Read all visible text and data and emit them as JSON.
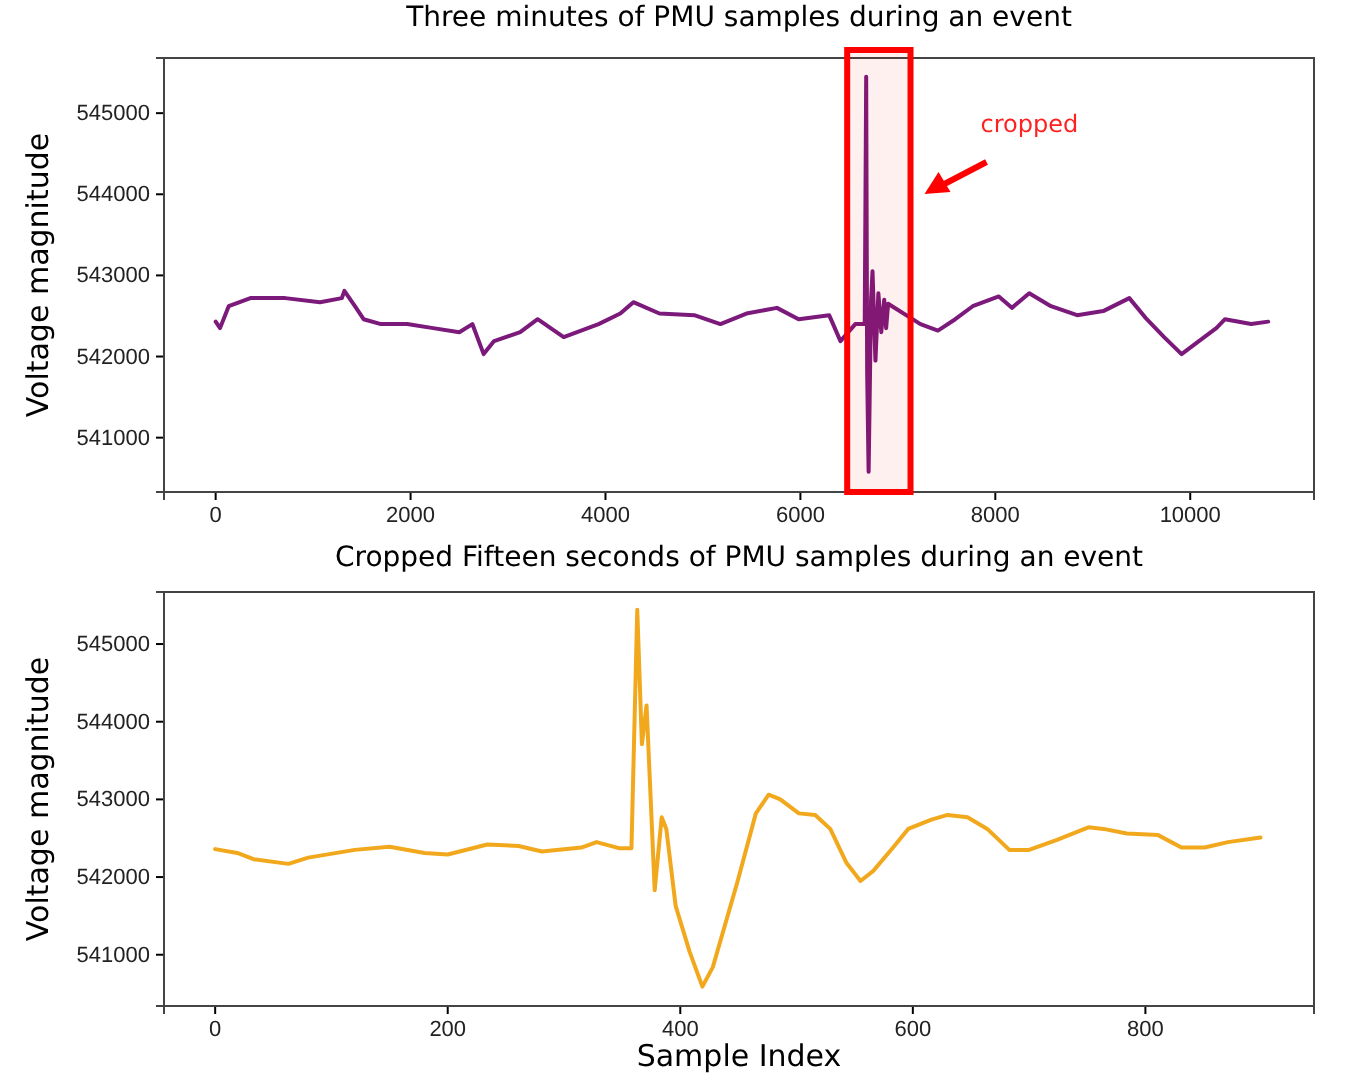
{
  "chart_data": [
    {
      "type": "line",
      "title": "Three minutes of PMU samples during an event",
      "ylabel": "Voltage magnitude",
      "annotations": [
        "cropped"
      ],
      "bands": [
        {
          "axis": "x",
          "from": 6480,
          "to": 7130,
          "color": "#ff0000"
        }
      ],
      "xlim": [
        -530,
        11270
      ],
      "ylim": [
        540330,
        545680
      ],
      "xticks": [
        0,
        2000,
        4000,
        6000,
        8000,
        10000
      ],
      "yticks": [
        541000,
        542000,
        543000,
        544000,
        545000
      ],
      "series": [
        {
          "color": "#7b1a7b",
          "x": [
            0,
            45,
            134,
            357,
            714,
            1071,
            1295,
            1321,
            1429,
            1518,
            1696,
            1964,
            2232,
            2500,
            2634,
            2750,
            2857,
            3125,
            3304,
            3571,
            3929,
            4152,
            4286,
            4554,
            4911,
            5179,
            5446,
            5759,
            5982,
            6295,
            6411,
            6563,
            6660,
            6675,
            6685,
            6700,
            6725,
            6740,
            6770,
            6800,
            6830,
            6860,
            6880,
            6900,
            7232,
            7411,
            7589,
            7768,
            8036,
            8170,
            8348,
            8571,
            8839,
            9107,
            9375,
            9554,
            9732,
            9911,
            10089,
            10268,
            10357,
            10625,
            10800
          ],
          "values": [
            542430,
            542350,
            542620,
            542720,
            542720,
            542670,
            542720,
            542810,
            542620,
            542460,
            542400,
            542400,
            542350,
            542300,
            542400,
            542030,
            542190,
            542300,
            542460,
            542240,
            542400,
            542530,
            542670,
            542530,
            542510,
            542400,
            542530,
            542600,
            542460,
            542510,
            542190,
            542400,
            542400,
            545450,
            541800,
            540580,
            542700,
            543050,
            541950,
            542780,
            542300,
            542700,
            542350,
            542650,
            542400,
            542320,
            542460,
            542620,
            542740,
            542600,
            542780,
            542620,
            542510,
            542560,
            542720,
            542460,
            542240,
            542030,
            542190,
            542350,
            542460,
            542400,
            542430
          ]
        }
      ]
    },
    {
      "type": "line",
      "title": "Cropped Fifteen seconds of PMU samples during an event",
      "xlabel": "Sample Index",
      "ylabel": "Voltage magnitude",
      "xlim": [
        -44,
        945
      ],
      "ylim": [
        540340,
        545670
      ],
      "xticks": [
        0,
        200,
        400,
        600,
        800
      ],
      "yticks": [
        541000,
        542000,
        543000,
        544000,
        545000
      ],
      "series": [
        {
          "color": "#f2a81d",
          "x": [
            0,
            19,
            33,
            63,
            80,
            120,
            150,
            180,
            200,
            234,
            261,
            281,
            315,
            328,
            348,
            358,
            363,
            367,
            371,
            378,
            384,
            388,
            396,
            408,
            419,
            428,
            449,
            465,
            476,
            486,
            502,
            516,
            529,
            543,
            555,
            566,
            583,
            596,
            616,
            630,
            647,
            664,
            683,
            700,
            724,
            751,
            764,
            784,
            811,
            831,
            851,
            871,
            899
          ],
          "values": [
            542360,
            542310,
            542230,
            542170,
            542250,
            542350,
            542390,
            542310,
            542290,
            542420,
            542400,
            542330,
            542380,
            542450,
            542370,
            542370,
            545440,
            543710,
            544210,
            541830,
            542770,
            542620,
            541630,
            541040,
            540590,
            540840,
            541930,
            542820,
            543060,
            543000,
            542820,
            542800,
            542620,
            542180,
            541950,
            542080,
            542380,
            542620,
            542740,
            542800,
            542770,
            542620,
            542350,
            542350,
            542480,
            542640,
            542620,
            542560,
            542540,
            542380,
            542380,
            542450,
            542510
          ]
        }
      ]
    }
  ]
}
